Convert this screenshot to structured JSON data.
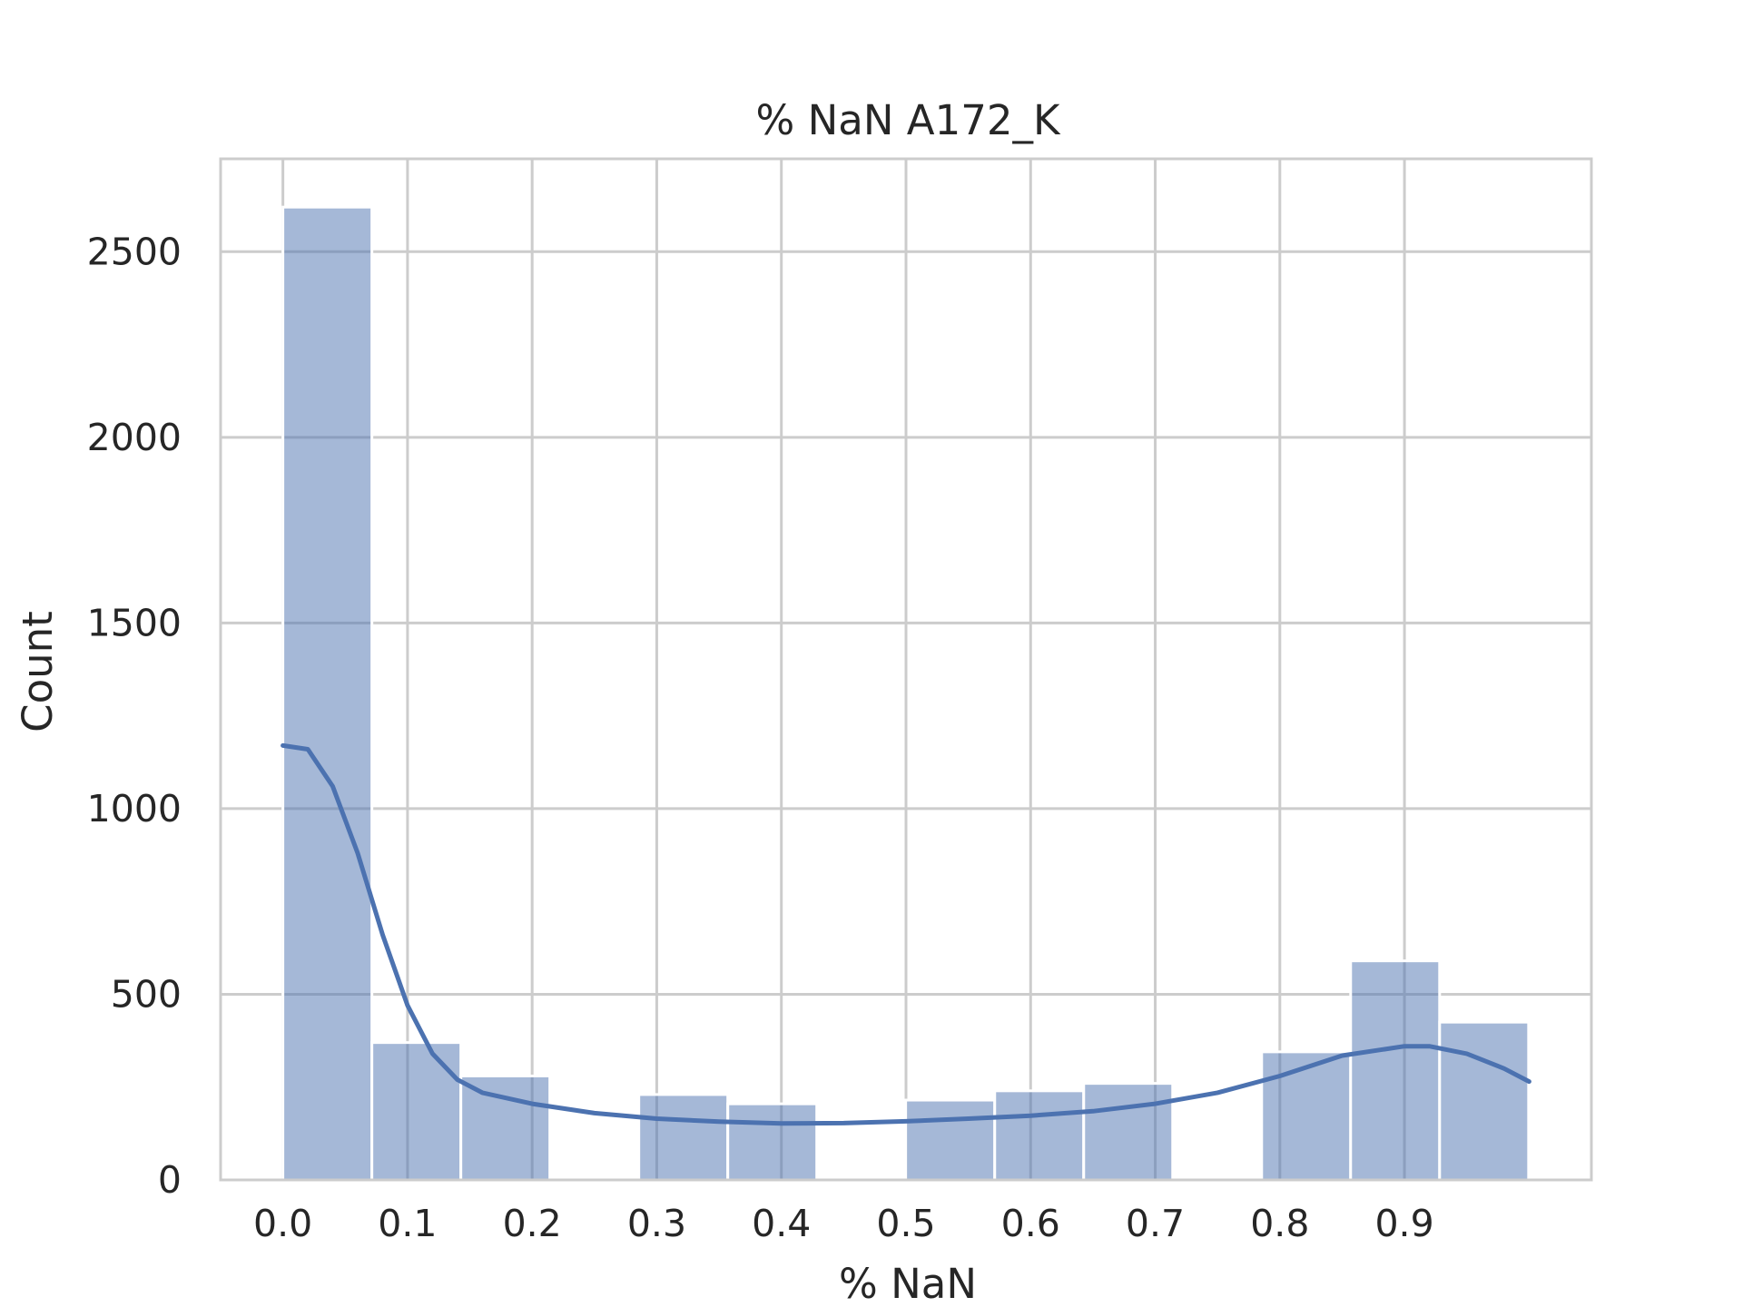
{
  "chart_data": {
    "type": "bar",
    "title": "% NaN A172_K",
    "xlabel": "% NaN",
    "ylabel": "Count",
    "xlim": [
      -0.05,
      1.05
    ],
    "ylim": [
      0,
      2750
    ],
    "xticks": [
      "0.0",
      "0.1",
      "0.2",
      "0.3",
      "0.4",
      "0.5",
      "0.6",
      "0.7",
      "0.8",
      "0.9"
    ],
    "yticks": [
      "0",
      "500",
      "1000",
      "1500",
      "2000",
      "2500"
    ],
    "grid": true,
    "bin_width": 0.0714,
    "bins": [
      {
        "start": 0.0,
        "count": 2620
      },
      {
        "start": 0.0714,
        "count": 370
      },
      {
        "start": 0.1428,
        "count": 280
      },
      {
        "start": 0.2142,
        "count": 0
      },
      {
        "start": 0.2856,
        "count": 230
      },
      {
        "start": 0.357,
        "count": 205
      },
      {
        "start": 0.4284,
        "count": 0
      },
      {
        "start": 0.4998,
        "count": 215
      },
      {
        "start": 0.5712,
        "count": 240
      },
      {
        "start": 0.6426,
        "count": 260
      },
      {
        "start": 0.714,
        "count": 0
      },
      {
        "start": 0.7854,
        "count": 345
      },
      {
        "start": 0.8568,
        "count": 590
      },
      {
        "start": 0.9282,
        "count": 425
      }
    ],
    "kde": {
      "x": [
        0.0,
        0.02,
        0.04,
        0.06,
        0.08,
        0.1,
        0.12,
        0.14,
        0.16,
        0.2,
        0.25,
        0.3,
        0.35,
        0.4,
        0.45,
        0.5,
        0.55,
        0.6,
        0.65,
        0.7,
        0.75,
        0.8,
        0.85,
        0.9,
        0.92,
        0.95,
        0.98,
        1.0
      ],
      "y": [
        1170,
        1160,
        1060,
        880,
        660,
        470,
        340,
        270,
        235,
        205,
        180,
        165,
        157,
        152,
        153,
        158,
        165,
        173,
        185,
        205,
        235,
        280,
        335,
        360,
        360,
        340,
        300,
        265
      ]
    },
    "colors": {
      "bar": "#4c72b0",
      "kde": "#4c72b0",
      "grid": "#cccccc",
      "frame": "#cccccc"
    }
  }
}
